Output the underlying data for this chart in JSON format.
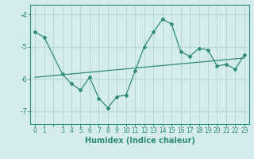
{
  "x": [
    0,
    1,
    3,
    4,
    5,
    6,
    7,
    8,
    9,
    10,
    11,
    12,
    13,
    14,
    15,
    16,
    17,
    18,
    19,
    20,
    21,
    22,
    23
  ],
  "y": [
    -4.55,
    -4.7,
    -5.85,
    -6.15,
    -6.35,
    -5.95,
    -6.6,
    -6.9,
    -6.55,
    -6.5,
    -5.75,
    -5.0,
    -4.55,
    -4.15,
    -4.3,
    -5.15,
    -5.3,
    -5.05,
    -5.1,
    -5.6,
    -5.55,
    -5.7,
    -5.25
  ],
  "trend_x": [
    0,
    23
  ],
  "trend_y": [
    -5.95,
    -5.35
  ],
  "line_color": "#2e8b7a",
  "bg_color": "#d4ecec",
  "grid_color": "#b0d4d4",
  "xlabel": "Humidex (Indice chaleur)",
  "yticks": [
    -7,
    -6,
    -5,
    -4
  ],
  "xtick_labels": [
    "0",
    "1",
    "",
    "3",
    "4",
    "5",
    "6",
    "7",
    "8",
    "9",
    "10",
    "11",
    "12",
    "13",
    "14",
    "15",
    "16",
    "17",
    "18",
    "19",
    "20",
    "21",
    "22",
    "23"
  ],
  "xtick_positions": [
    0,
    1,
    2,
    3,
    4,
    5,
    6,
    7,
    8,
    9,
    10,
    11,
    12,
    13,
    14,
    15,
    16,
    17,
    18,
    19,
    20,
    21,
    22,
    23
  ],
  "ylim": [
    -7.4,
    -3.7
  ],
  "xlim": [
    -0.5,
    23.5
  ],
  "figsize": [
    3.2,
    2.0
  ],
  "dpi": 100
}
